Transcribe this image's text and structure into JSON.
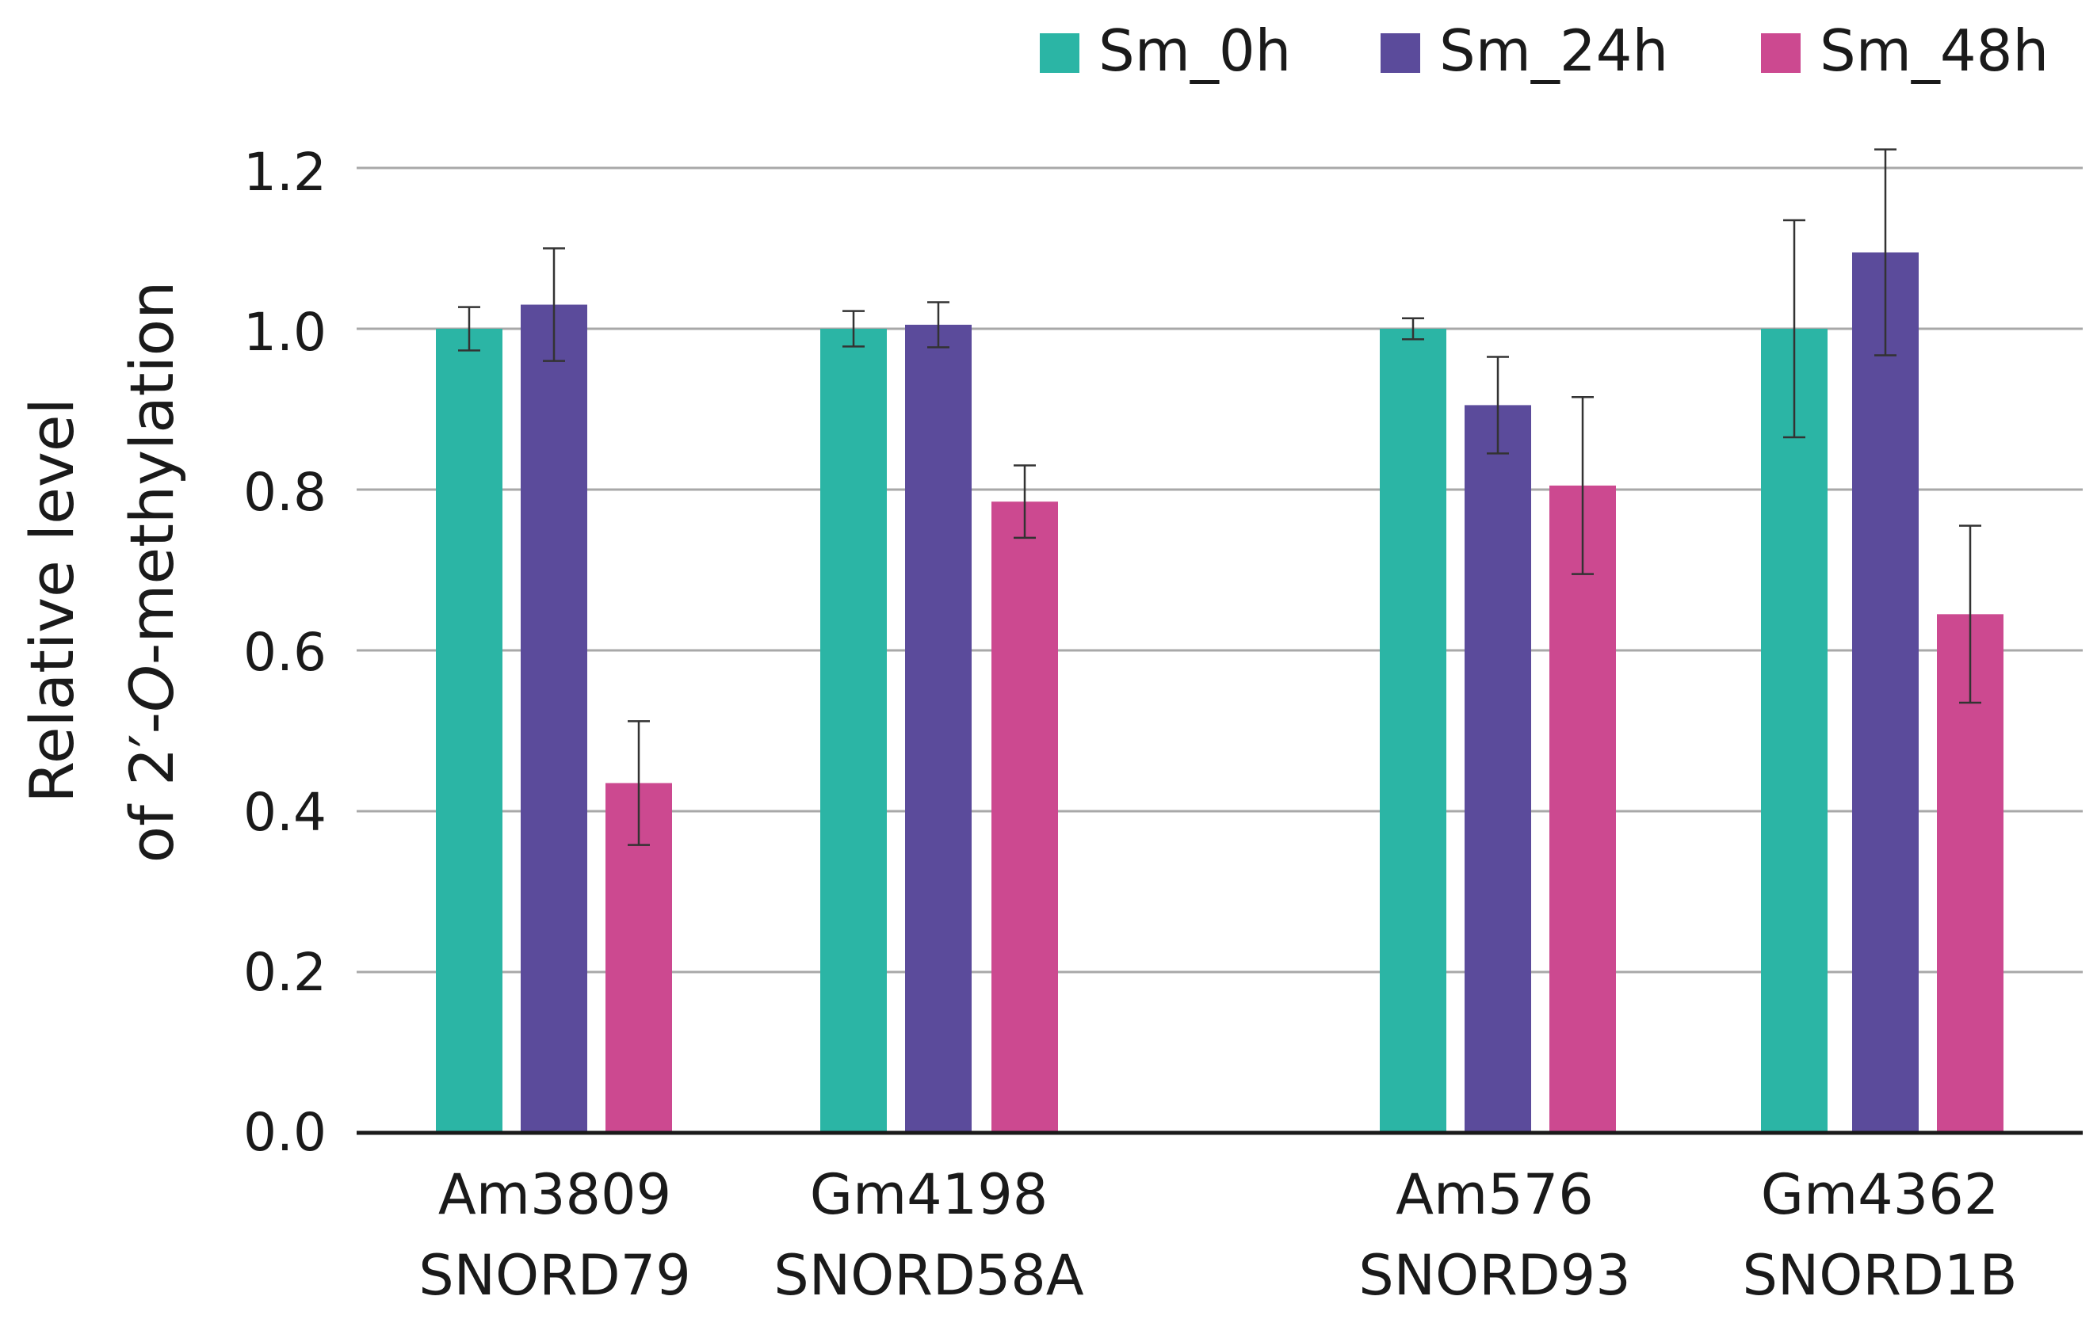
{
  "chart_data": {
    "type": "bar",
    "title": "",
    "xlabel": "",
    "ylabel": {
      "line1": "Relative level",
      "line2_prefix": "of 2′-",
      "line2_italic": "O",
      "line2_suffix": "-methylation"
    },
    "ylim": [
      0.0,
      1.2
    ],
    "yticks": [
      "0.0",
      "0.2",
      "0.4",
      "0.6",
      "0.8",
      "1.0",
      "1.2"
    ],
    "grid": true,
    "legend_position": "top-right",
    "categories": [
      {
        "line1": "Am3809",
        "line2": "SNORD79"
      },
      {
        "line1": "Gm4198",
        "line2": "SNORD58A"
      },
      {
        "line1": "Am576",
        "line2": "SNORD93"
      },
      {
        "line1": "Gm4362",
        "line2": "SNORD1B"
      }
    ],
    "series": [
      {
        "name": "Sm_0h",
        "color": "#2bb5a5",
        "values": [
          1.0,
          1.0,
          1.0,
          1.0
        ],
        "errors": [
          0.027,
          0.022,
          0.013,
          0.135
        ]
      },
      {
        "name": "Sm_24h",
        "color": "#5b4b9b",
        "values": [
          1.03,
          1.005,
          0.905,
          1.095
        ],
        "errors": [
          0.07,
          0.028,
          0.06,
          0.128
        ]
      },
      {
        "name": "Sm_48h",
        "color": "#cc4990",
        "values": [
          0.435,
          0.785,
          0.805,
          0.645
        ],
        "errors": [
          0.077,
          0.045,
          0.11,
          0.11
        ]
      }
    ]
  }
}
